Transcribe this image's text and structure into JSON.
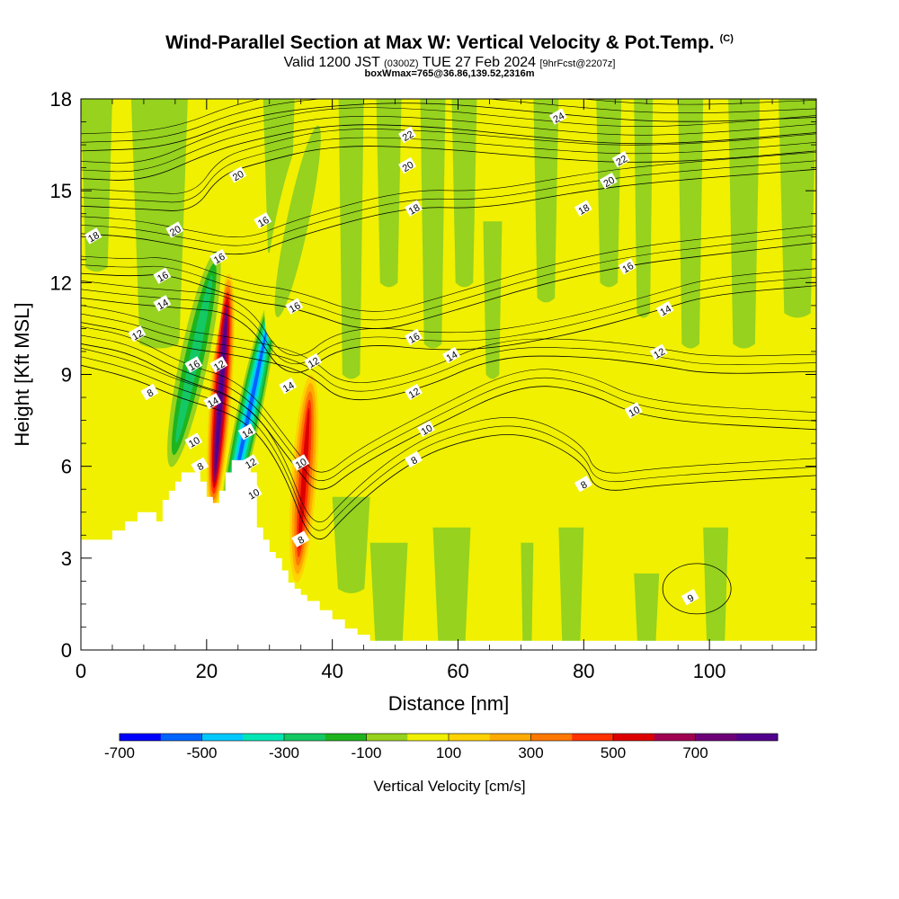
{
  "title": {
    "main": "Wind-Parallel Section at Max W: Vertical Velocity & Pot.Temp.",
    "copyright": "(C)",
    "valid_prefix": "Valid 1200 JST",
    "valid_utc": "(0300Z)",
    "valid_date": "TUE 27 Feb 2024",
    "forecast": "[9hrFcst@2207z]",
    "box_info": "boxWmax=765@36.86,139.52,2316m"
  },
  "chart_data": {
    "type": "heatmap",
    "xlabel": "Distance [nm]",
    "ylabel": "Height [Kft MSL]",
    "xlim": [
      0,
      117
    ],
    "ylim": [
      0,
      18
    ],
    "x_ticks": [
      0,
      20,
      40,
      60,
      80,
      100
    ],
    "y_ticks": [
      0,
      3,
      6,
      9,
      12,
      15,
      18
    ],
    "colorbar": {
      "label": "Vertical Velocity [cm/s]",
      "tick_labels": [
        "-700",
        "-500",
        "-300",
        "-100",
        "100",
        "300",
        "500",
        "700"
      ],
      "bins": [
        -800,
        -700,
        -600,
        -500,
        -400,
        -300,
        -200,
        -100,
        0,
        100,
        200,
        300,
        400,
        500,
        600,
        700,
        800
      ],
      "colors": [
        "#0000ff",
        "#0064ff",
        "#00c8ff",
        "#00e6b4",
        "#14c864",
        "#1eb41e",
        "#96d21e",
        "#f0f000",
        "#ffd200",
        "#ffaa00",
        "#ff7800",
        "#ff3200",
        "#dc0000",
        "#a00050",
        "#6e0078",
        "#50008c"
      ]
    },
    "background_ranges": [
      {
        "w": "-100 to 0",
        "color": "#96d21e"
      },
      {
        "w": "0 to 100",
        "color": "#f0f000"
      }
    ],
    "terrain_profile": {
      "x": [
        0,
        3,
        5,
        7,
        9,
        11,
        12,
        13,
        14,
        15,
        16,
        17,
        18,
        19,
        20,
        21,
        22,
        23,
        24,
        26,
        27,
        28,
        29,
        30,
        31,
        32,
        33,
        34,
        35,
        36,
        38,
        40,
        42,
        44,
        46,
        47
      ],
      "height": [
        3.6,
        3.6,
        3.9,
        4.2,
        4.5,
        4.5,
        4.2,
        4.9,
        5.2,
        5.5,
        5.8,
        5.8,
        5.8,
        5.5,
        5.0,
        4.8,
        5.2,
        5.8,
        6.2,
        6.2,
        5.8,
        4.0,
        3.6,
        3.2,
        3.0,
        2.6,
        2.2,
        2.0,
        1.8,
        1.6,
        1.3,
        1.0,
        0.7,
        0.5,
        0.3,
        0.3
      ]
    },
    "vertical_velocity_features": [
      {
        "kind": "updraft",
        "x_range": [
          20.5,
          24
        ],
        "height_range": [
          4.5,
          12.3
        ],
        "peak": 765
      },
      {
        "kind": "downdraft",
        "x_range": [
          15,
          21
        ],
        "height_range": [
          5.5,
          13.5
        ],
        "peak": -400
      },
      {
        "kind": "downdraft",
        "x_range": [
          24.5,
          29
        ],
        "height_range": [
          3.5,
          12
        ],
        "peak": -700
      },
      {
        "kind": "updraft",
        "x_range": [
          33.5,
          37.5
        ],
        "height_range": [
          2.2,
          9
        ],
        "peak": 500
      },
      {
        "kind": "downdraft",
        "x_range": [
          31,
          38
        ],
        "height_range": [
          10,
          18
        ],
        "peak": -200
      }
    ],
    "theta_contours": [
      {
        "label": "8",
        "points": [
          [
            0,
            9.3
          ],
          [
            8,
            8.9
          ],
          [
            16,
            8.2
          ],
          [
            26,
            7.6
          ],
          [
            32,
            6.0
          ],
          [
            37,
            3.2
          ],
          [
            42,
            4.4
          ],
          [
            50,
            5.8
          ],
          [
            58,
            6.7
          ],
          [
            70,
            7.2
          ],
          [
            80,
            6.2
          ],
          [
            82,
            5.1
          ],
          [
            92,
            5.4
          ],
          [
            117,
            5.7
          ]
        ]
      },
      {
        "label": "10",
        "points": [
          [
            0,
            10.0
          ],
          [
            8,
            9.7
          ],
          [
            16,
            8.8
          ],
          [
            26,
            8.2
          ],
          [
            34,
            6.0
          ],
          [
            38,
            5.0
          ],
          [
            44,
            6.0
          ],
          [
            56,
            7.3
          ],
          [
            70,
            8.7
          ],
          [
            80,
            8.5
          ],
          [
            90,
            7.5
          ],
          [
            117,
            7.2
          ]
        ]
      },
      {
        "label": "12",
        "points": [
          [
            0,
            10.7
          ],
          [
            8,
            10.4
          ],
          [
            15,
            9.9
          ],
          [
            26,
            9.6
          ],
          [
            36,
            9.1
          ],
          [
            42,
            8.0
          ],
          [
            54,
            8.5
          ],
          [
            66,
            9.6
          ],
          [
            80,
            9.6
          ],
          [
            92,
            9.3
          ],
          [
            100,
            9.0
          ],
          [
            117,
            9.1
          ]
        ]
      },
      {
        "label": "14",
        "points": [
          [
            0,
            11.5
          ],
          [
            8,
            11.3
          ],
          [
            14,
            11.2
          ],
          [
            26,
            11.0
          ],
          [
            33,
            8.6
          ],
          [
            42,
            10.1
          ],
          [
            60,
            9.7
          ],
          [
            76,
            10.2
          ],
          [
            92,
            11.1
          ],
          [
            100,
            11.6
          ],
          [
            117,
            11.9
          ]
        ]
      },
      {
        "label": "16",
        "points": [
          [
            0,
            12.3
          ],
          [
            8,
            12.2
          ],
          [
            14,
            12.3
          ],
          [
            26,
            11.4
          ],
          [
            34,
            11.2
          ],
          [
            46,
            10.3
          ],
          [
            58,
            11.0
          ],
          [
            74,
            12.0
          ],
          [
            88,
            12.6
          ],
          [
            100,
            12.9
          ],
          [
            117,
            13.3
          ]
        ]
      },
      {
        "label": "18",
        "points": [
          [
            0,
            13.6
          ],
          [
            8,
            13.5
          ],
          [
            16,
            13.2
          ],
          [
            26,
            12.8
          ],
          [
            34,
            13.5
          ],
          [
            52,
            14.5
          ],
          [
            64,
            14.4
          ],
          [
            80,
            15.0
          ],
          [
            92,
            15.3
          ],
          [
            117,
            15.7
          ]
        ]
      },
      {
        "label": "20",
        "points": [
          [
            0,
            14.5
          ],
          [
            10,
            14.4
          ],
          [
            18,
            14.3
          ],
          [
            22,
            15.5
          ],
          [
            28,
            15.9
          ],
          [
            40,
            16.5
          ],
          [
            56,
            16.4
          ],
          [
            72,
            16.1
          ],
          [
            86,
            15.9
          ],
          [
            100,
            16.0
          ],
          [
            117,
            16.3
          ]
        ]
      },
      {
        "label": "22",
        "points": [
          [
            0,
            15.4
          ],
          [
            10,
            15.3
          ],
          [
            20,
            16.2
          ],
          [
            26,
            16.6
          ],
          [
            40,
            17.2
          ],
          [
            56,
            17.1
          ],
          [
            70,
            16.8
          ],
          [
            86,
            16.5
          ],
          [
            100,
            16.6
          ],
          [
            117,
            16.9
          ]
        ]
      },
      {
        "label": "24",
        "points": [
          [
            0,
            16.3
          ],
          [
            14,
            16.4
          ],
          [
            26,
            17.4
          ],
          [
            40,
            17.8
          ],
          [
            56,
            17.9
          ],
          [
            76,
            17.5
          ],
          [
            94,
            17.2
          ],
          [
            117,
            17.4
          ]
        ]
      }
    ],
    "contour_labels": [
      {
        "text": "18",
        "x": 2,
        "y": 13.5
      },
      {
        "text": "20",
        "x": 15,
        "y": 13.7
      },
      {
        "text": "20",
        "x": 25,
        "y": 15.5
      },
      {
        "text": "16",
        "x": 29,
        "y": 14.0
      },
      {
        "text": "16",
        "x": 13,
        "y": 12.2
      },
      {
        "text": "14",
        "x": 13,
        "y": 11.3
      },
      {
        "text": "12",
        "x": 9,
        "y": 10.3
      },
      {
        "text": "8",
        "x": 11,
        "y": 8.4
      },
      {
        "text": "16",
        "x": 22,
        "y": 12.8
      },
      {
        "text": "12",
        "x": 22,
        "y": 9.3
      },
      {
        "text": "16",
        "x": 18,
        "y": 9.3
      },
      {
        "text": "14",
        "x": 21,
        "y": 8.1
      },
      {
        "text": "10",
        "x": 18,
        "y": 6.8
      },
      {
        "text": "8",
        "x": 19,
        "y": 6.0
      },
      {
        "text": "14",
        "x": 26.5,
        "y": 7.1
      },
      {
        "text": "12",
        "x": 27,
        "y": 6.1
      },
      {
        "text": "10",
        "x": 27.5,
        "y": 5.1
      },
      {
        "text": "16",
        "x": 34,
        "y": 11.2
      },
      {
        "text": "12",
        "x": 37,
        "y": 9.4
      },
      {
        "text": "14",
        "x": 33,
        "y": 8.6
      },
      {
        "text": "10",
        "x": 35,
        "y": 6.1
      },
      {
        "text": "8",
        "x": 35,
        "y": 3.6
      },
      {
        "text": "22",
        "x": 52,
        "y": 16.8
      },
      {
        "text": "20",
        "x": 52,
        "y": 15.8
      },
      {
        "text": "18",
        "x": 53,
        "y": 14.4
      },
      {
        "text": "16",
        "x": 53,
        "y": 10.2
      },
      {
        "text": "14",
        "x": 59,
        "y": 9.6
      },
      {
        "text": "12",
        "x": 53,
        "y": 8.4
      },
      {
        "text": "10",
        "x": 55,
        "y": 7.2
      },
      {
        "text": "8",
        "x": 53,
        "y": 6.2
      },
      {
        "text": "24",
        "x": 76,
        "y": 17.4
      },
      {
        "text": "22",
        "x": 86,
        "y": 16.0
      },
      {
        "text": "20",
        "x": 84,
        "y": 15.3
      },
      {
        "text": "18",
        "x": 80,
        "y": 14.4
      },
      {
        "text": "16",
        "x": 87,
        "y": 12.5
      },
      {
        "text": "14",
        "x": 93,
        "y": 11.1
      },
      {
        "text": "12",
        "x": 92,
        "y": 9.7
      },
      {
        "text": "10",
        "x": 88,
        "y": 7.8
      },
      {
        "text": "8",
        "x": 80,
        "y": 5.4
      },
      {
        "text": "9",
        "x": 97,
        "y": 1.7
      }
    ],
    "small_contour": {
      "label": "9",
      "center_x": 98,
      "center_y": 2.0
    }
  }
}
